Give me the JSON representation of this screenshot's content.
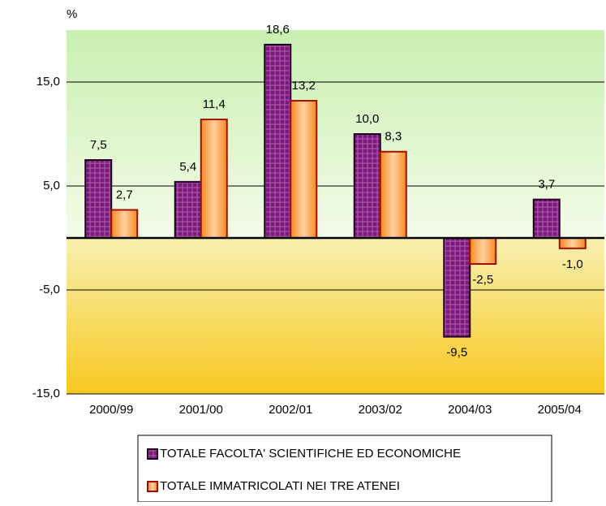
{
  "chart_data": {
    "type": "bar",
    "y_unit": "%",
    "categories": [
      "2000/99",
      "2001/00",
      "2002/01",
      "2003/02",
      "2004/03",
      "2005/04"
    ],
    "series": [
      {
        "name": "TOTALE FACOLTA' SCIENTIFICHE ED ECONOMICHE",
        "color": "#7b1a7b",
        "values": [
          7.5,
          5.4,
          18.6,
          10.0,
          -9.5,
          3.7
        ],
        "value_labels": [
          "7,5",
          "5,4",
          "18,6",
          "10,0",
          "-9,5",
          "3,7"
        ]
      },
      {
        "name": "TOTALE IMMATRICOLATI NEI TRE ATENEI",
        "color": "#f7a040",
        "values": [
          2.7,
          11.4,
          13.2,
          8.3,
          -2.5,
          -1.0
        ],
        "value_labels": [
          "2,7",
          "11,4",
          "13,2",
          "8,3",
          "-2,5",
          "-1,0"
        ]
      }
    ],
    "ylim": [
      -15,
      20
    ],
    "yticks": [
      {
        "value": -15,
        "label": "-15,0"
      },
      {
        "value": -5,
        "label": "-5,0"
      },
      {
        "value": 5,
        "label": "5,0"
      },
      {
        "value": 15,
        "label": "15,0"
      }
    ],
    "grid": true,
    "legend": "bottom"
  }
}
